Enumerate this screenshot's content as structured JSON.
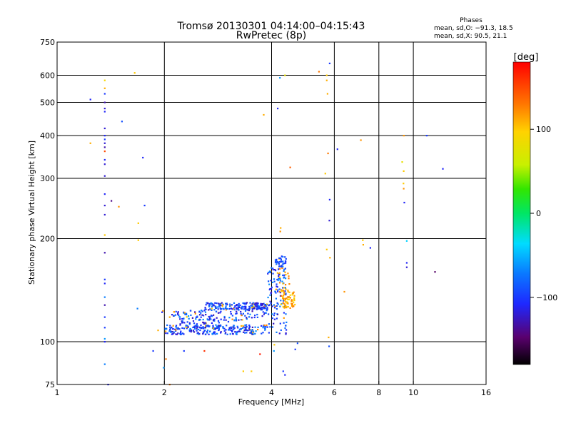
{
  "header": {
    "title_line1": "Tromsø 20130301 04:14:00–04:15:43",
    "title_line2": "RwPretec (8p)",
    "stats_title": "Phases",
    "stats_line1": "mean, sd,O: −91.3, 18.5",
    "stats_line2": "mean, sd,X:  90.5, 21.1"
  },
  "chart_data": {
    "type": "scatter",
    "title": "Tromsø 20130301 04:14:00–04:15:43",
    "subtitle": "RwPretec (8p)",
    "xlabel": "Frequency [MHz]",
    "ylabel": "Stationary phase Virtual Height [km]",
    "x_scale": "log",
    "y_scale": "log",
    "xlim": [
      1,
      16
    ],
    "ylim": [
      75,
      750
    ],
    "x_ticks": [
      1,
      2,
      4,
      6,
      8,
      10,
      16
    ],
    "x_tick_labels": [
      "1",
      "2",
      "4",
      "6",
      "8",
      "10",
      "16"
    ],
    "y_ticks": [
      75,
      100,
      200,
      300,
      400,
      500,
      600,
      750
    ],
    "y_tick_labels": [
      "75",
      "100",
      "200",
      "300",
      "400",
      "500",
      "600",
      "750"
    ],
    "x_gridlines": [
      2,
      4,
      6,
      8,
      10
    ],
    "y_gridlines": [
      100,
      200,
      300,
      400,
      500,
      600
    ],
    "colorbar": {
      "label": "[deg]",
      "range": [
        -180,
        180
      ],
      "ticks": [
        100,
        0,
        -100
      ],
      "tick_labels": [
        "100",
        "0",
        "−100"
      ]
    },
    "points": [
      [
        1.24,
        510,
        -110
      ],
      [
        1.24,
        380,
        110
      ],
      [
        1.36,
        580,
        90
      ],
      [
        1.36,
        550,
        110
      ],
      [
        1.36,
        530,
        -100
      ],
      [
        1.36,
        500,
        -130
      ],
      [
        1.36,
        480,
        -120
      ],
      [
        1.36,
        470,
        -110
      ],
      [
        1.36,
        420,
        -120
      ],
      [
        1.36,
        400,
        -110
      ],
      [
        1.36,
        390,
        -100
      ],
      [
        1.36,
        380,
        -120
      ],
      [
        1.36,
        370,
        -130
      ],
      [
        1.36,
        360,
        150
      ],
      [
        1.36,
        340,
        -110
      ],
      [
        1.36,
        330,
        -120
      ],
      [
        1.36,
        305,
        -120
      ],
      [
        1.36,
        270,
        -110
      ],
      [
        1.36,
        250,
        -120
      ],
      [
        1.36,
        235,
        -120
      ],
      [
        1.36,
        205,
        100
      ],
      [
        1.36,
        182,
        -130
      ],
      [
        1.36,
        152,
        -100
      ],
      [
        1.36,
        148,
        -110
      ],
      [
        1.36,
        135,
        -70
      ],
      [
        1.36,
        128,
        -130
      ],
      [
        1.36,
        118,
        -100
      ],
      [
        1.36,
        110,
        -100
      ],
      [
        1.36,
        102,
        -60
      ],
      [
        1.36,
        100,
        -110
      ],
      [
        1.36,
        86,
        -70
      ],
      [
        1.39,
        75,
        -110
      ],
      [
        1.42,
        258,
        -140
      ],
      [
        1.49,
        248,
        120
      ],
      [
        1.52,
        440,
        -90
      ],
      [
        1.65,
        610,
        100
      ],
      [
        1.69,
        222,
        100
      ],
      [
        1.69,
        198,
        100
      ],
      [
        1.68,
        125,
        -70
      ],
      [
        1.74,
        345,
        -110
      ],
      [
        1.76,
        250,
        -100
      ],
      [
        1.86,
        94,
        -100
      ],
      [
        1.92,
        108,
        110
      ],
      [
        1.98,
        123,
        120
      ],
      [
        1.97,
        122,
        -110
      ],
      [
        1.99,
        84,
        -60
      ],
      [
        2.02,
        89,
        130
      ],
      [
        2.07,
        75,
        130
      ],
      [
        2.07,
        118,
        110
      ],
      [
        2.27,
        94,
        -100
      ],
      [
        2.59,
        94,
        160
      ],
      [
        3.33,
        82,
        100
      ],
      [
        3.51,
        82,
        100
      ],
      [
        3.71,
        92,
        170
      ],
      [
        3.8,
        460,
        110
      ],
      [
        3.73,
        125,
        160
      ],
      [
        4.07,
        98,
        100
      ],
      [
        4.06,
        94,
        -60
      ],
      [
        4.16,
        480,
        -110
      ],
      [
        4.22,
        590,
        -60
      ],
      [
        4.24,
        215,
        110
      ],
      [
        4.23,
        210,
        120
      ],
      [
        4.36,
        600,
        80
      ],
      [
        4.51,
        323,
        140
      ],
      [
        4.66,
        95,
        -100
      ],
      [
        4.73,
        99,
        -90
      ],
      [
        4.31,
        82,
        -100
      ],
      [
        4.36,
        80,
        -110
      ],
      [
        5.43,
        615,
        130
      ],
      [
        5.71,
        600,
        100
      ],
      [
        5.71,
        580,
        110
      ],
      [
        5.74,
        530,
        110
      ],
      [
        5.76,
        355,
        130
      ],
      [
        5.66,
        310,
        100
      ],
      [
        5.82,
        260,
        -110
      ],
      [
        5.81,
        226,
        -120
      ],
      [
        5.71,
        186,
        100
      ],
      [
        5.83,
        176,
        110
      ],
      [
        5.78,
        103,
        110
      ],
      [
        5.8,
        97,
        -90
      ],
      [
        5.82,
        650,
        -100
      ],
      [
        6.12,
        365,
        -110
      ],
      [
        6.4,
        140,
        120
      ],
      [
        7.12,
        388,
        120
      ],
      [
        7.21,
        198,
        100
      ],
      [
        7.23,
        192,
        110
      ],
      [
        7.57,
        188,
        -110
      ],
      [
        9.4,
        400,
        120
      ],
      [
        9.3,
        335,
        80
      ],
      [
        9.39,
        315,
        100
      ],
      [
        9.38,
        290,
        100
      ],
      [
        9.39,
        280,
        120
      ],
      [
        9.43,
        255,
        -110
      ],
      [
        9.58,
        197,
        -40
      ],
      [
        9.58,
        170,
        -110
      ],
      [
        9.58,
        165,
        -120
      ],
      [
        10.9,
        400,
        -100
      ],
      [
        12.1,
        320,
        -110
      ],
      [
        11.5,
        160,
        -150
      ]
    ],
    "clusters": [
      {
        "x_range": [
          2.0,
          3.9
        ],
        "height_range": [
          105,
          112
        ],
        "phase_range": [
          -130,
          -60
        ],
        "count": 260,
        "bend": 0.0
      },
      {
        "x_range": [
          2.1,
          3.9
        ],
        "height_range": [
          112,
          123
        ],
        "phase_range": [
          -130,
          -60
        ],
        "count": 180,
        "bend": 0.06
      },
      {
        "x_range": [
          2.6,
          3.9
        ],
        "height_range": [
          124,
          130
        ],
        "phase_range": [
          -130,
          -70
        ],
        "count": 150,
        "bend": 0.0
      },
      {
        "x_range": [
          3.9,
          4.4
        ],
        "height_range": [
          105,
          165
        ],
        "phase_range": [
          -130,
          -60
        ],
        "count": 110,
        "bend": 0.0
      },
      {
        "x_range": [
          4.1,
          4.4
        ],
        "height_range": [
          165,
          178
        ],
        "phase_range": [
          -110,
          -70
        ],
        "count": 40,
        "bend": 0.0
      },
      {
        "x_range": [
          4.25,
          4.65
        ],
        "height_range": [
          125,
          142
        ],
        "phase_range": [
          90,
          130
        ],
        "count": 70,
        "bend": 0.0
      },
      {
        "x_range": [
          4.1,
          4.5
        ],
        "height_range": [
          140,
          165
        ],
        "phase_range": [
          100,
          130
        ],
        "count": 20,
        "bend": 0.0
      }
    ]
  }
}
